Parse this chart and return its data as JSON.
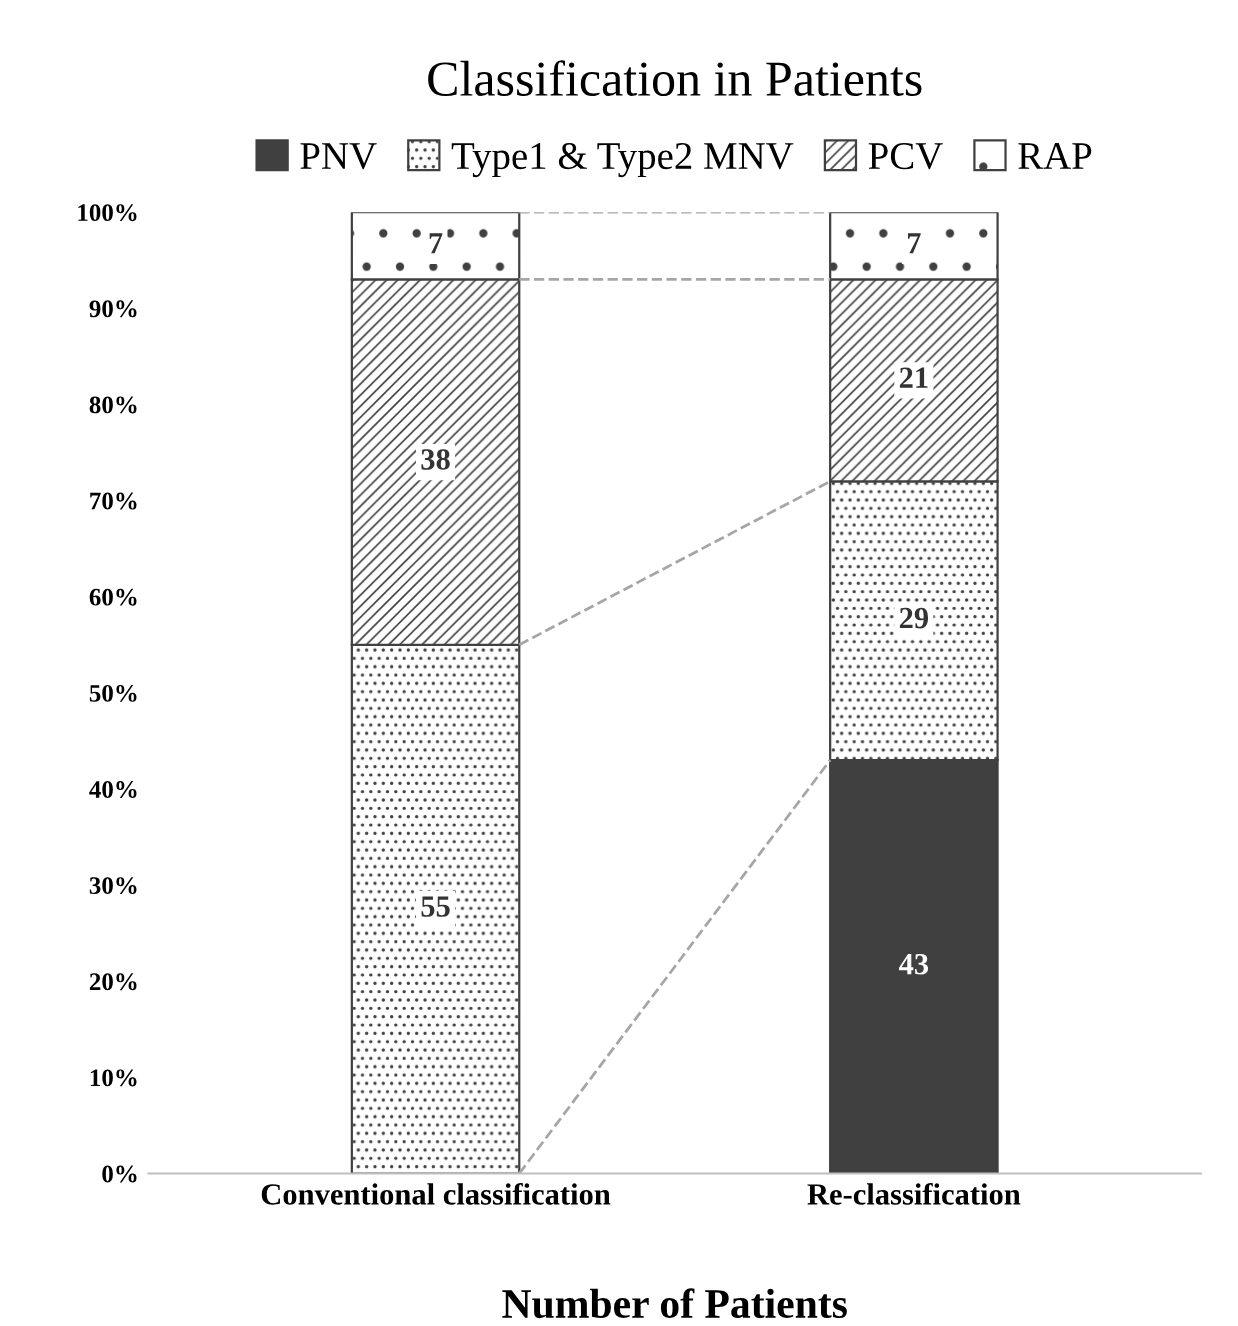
{
  "chart_data": {
    "type": "bar",
    "title": "Classification in Patients",
    "xlabel": "Number of Patients",
    "categories": [
      "Conventional classification",
      "Re-classification"
    ],
    "stacked": true,
    "legend": "top",
    "grid": false,
    "ylim": [
      0,
      100
    ],
    "yticks": [
      {
        "value": 0,
        "label": "0%"
      },
      {
        "value": 10,
        "label": "10%"
      },
      {
        "value": 20,
        "label": "20%"
      },
      {
        "value": 30,
        "label": "30%"
      },
      {
        "value": 40,
        "label": "40%"
      },
      {
        "value": 50,
        "label": "50%"
      },
      {
        "value": 60,
        "label": "60%"
      },
      {
        "value": 70,
        "label": "70%"
      },
      {
        "value": 80,
        "label": "80%"
      },
      {
        "value": 90,
        "label": "90%"
      },
      {
        "value": 100,
        "label": "100%"
      }
    ],
    "series": [
      {
        "name": "PNV",
        "color": "#404040",
        "values": [
          0,
          43
        ],
        "value_labels": [
          null,
          "43"
        ]
      },
      {
        "name": "Type1 & Type2 MNV",
        "color": "#ffffff",
        "values": [
          55,
          29
        ],
        "value_labels": [
          "55",
          "29"
        ]
      },
      {
        "name": "PCV",
        "color": "#ffffff",
        "values": [
          38,
          21
        ],
        "value_labels": [
          "38",
          "21"
        ]
      },
      {
        "name": "RAP",
        "color": "#ffffff",
        "values": [
          7,
          7
        ],
        "value_labels": [
          "7",
          "7"
        ]
      }
    ]
  }
}
